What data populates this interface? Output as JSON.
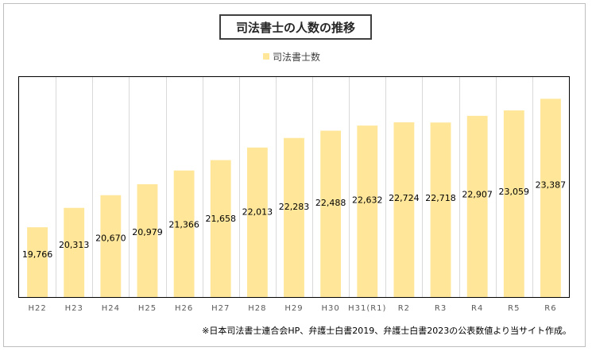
{
  "chart_data": {
    "type": "bar",
    "title": "司法書士の人数の推移",
    "legend": [
      "司法書士数"
    ],
    "legend_position": "top",
    "grid": "vertical",
    "categories": [
      "H22",
      "H23",
      "H24",
      "H25",
      "H26",
      "H27",
      "H28",
      "H29",
      "H30",
      "H31(R1)",
      "R2",
      "R3",
      "R4",
      "R5",
      "R6"
    ],
    "series": [
      {
        "name": "司法書士数",
        "values": [
          19766,
          20313,
          20670,
          20979,
          21366,
          21658,
          22013,
          22283,
          22488,
          22632,
          22724,
          22718,
          22907,
          23059,
          23387
        ],
        "labels": [
          "19,766",
          "20,313",
          "20,670",
          "20,979",
          "21,366",
          "21,658",
          "22,013",
          "22,283",
          "22,488",
          "22,632",
          "22,724",
          "22,718",
          "22,907",
          "23,059",
          "23,387"
        ]
      }
    ],
    "ylim": [
      17800,
      24000
    ],
    "xlabel": "",
    "ylabel": "",
    "colors": {
      "bar": "#ffe699",
      "grid": "#d9d9d9",
      "border": "#000000"
    }
  },
  "source_note": "※日本司法書士連合会HP、弁護士白書2019、弁護士白書2023の公表数値より当サイト作成。"
}
